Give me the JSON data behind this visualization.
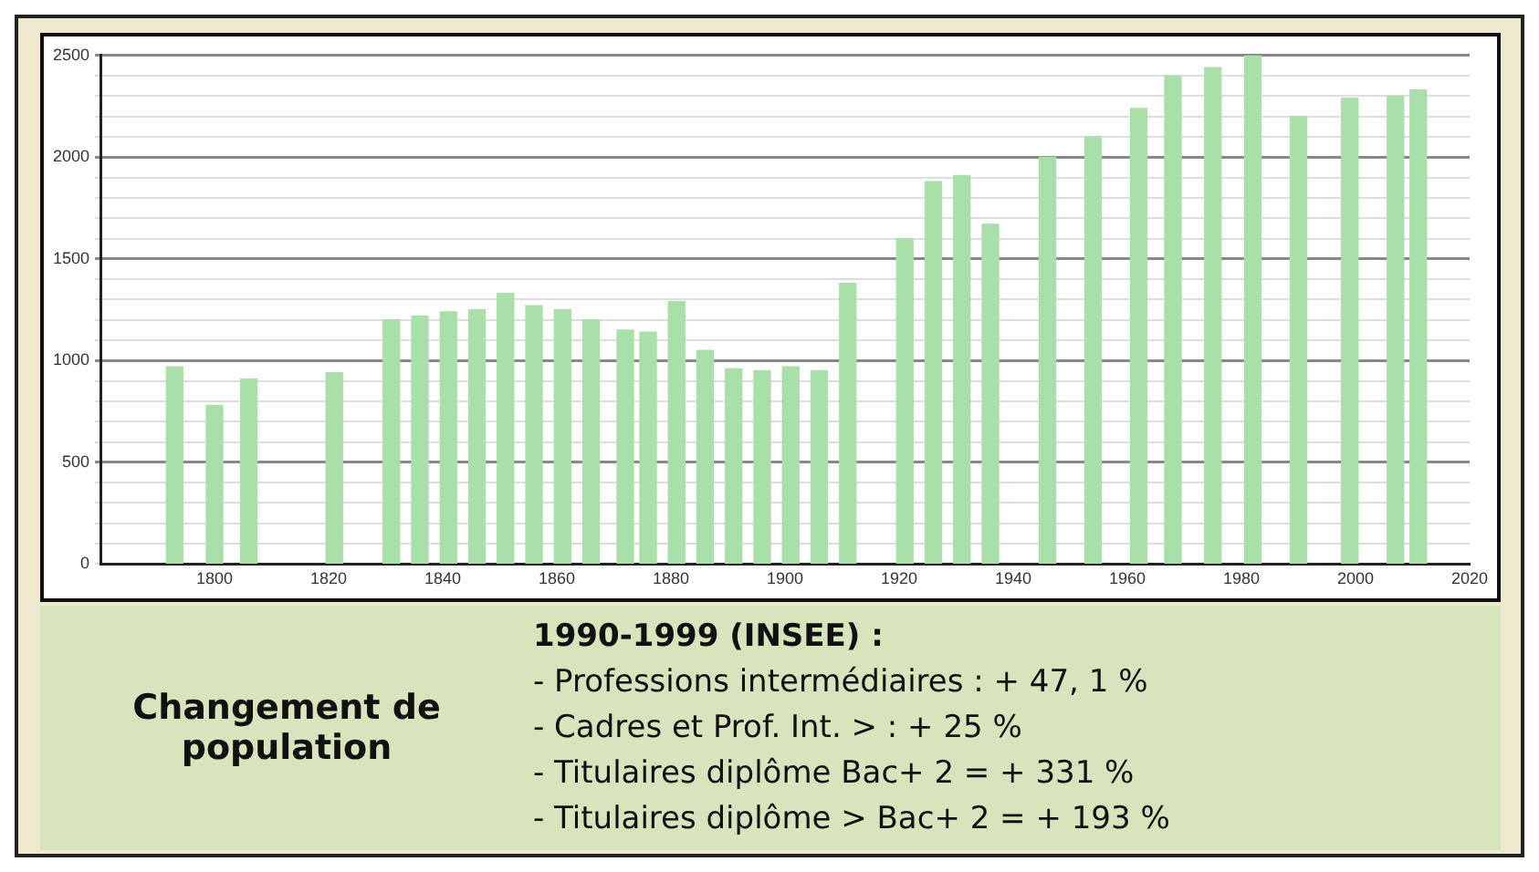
{
  "chart_data": {
    "type": "bar",
    "x": [
      1793,
      1800,
      1806,
      1821,
      1831,
      1836,
      1841,
      1846,
      1851,
      1856,
      1861,
      1866,
      1872,
      1876,
      1881,
      1886,
      1891,
      1896,
      1901,
      1906,
      1911,
      1921,
      1926,
      1931,
      1936,
      1946,
      1954,
      1962,
      1968,
      1975,
      1982,
      1990,
      1999,
      2007,
      2011
    ],
    "values": [
      970,
      780,
      910,
      940,
      1200,
      1220,
      1240,
      1250,
      1330,
      1270,
      1250,
      1200,
      1150,
      1140,
      1290,
      1050,
      960,
      950,
      970,
      950,
      1380,
      1600,
      1880,
      1910,
      1670,
      2000,
      2100,
      2240,
      2400,
      2440,
      2500,
      2200,
      2290,
      2300,
      2330
    ],
    "color": "#a9dfa9",
    "xlim": [
      1780,
      2020
    ],
    "xticks": [
      1800,
      1820,
      1840,
      1860,
      1880,
      1900,
      1920,
      1940,
      1960,
      1980,
      2000,
      2020
    ],
    "ylim": [
      0,
      2500
    ],
    "yticks": [
      0,
      {
        "value": 100,
        "label": null
      },
      {
        "value": 200,
        "label": null
      },
      {
        "value": 300,
        "label": null
      },
      {
        "value": 400,
        "label": null
      },
      500,
      {
        "value": 600,
        "label": null
      },
      {
        "value": 700,
        "label": null
      },
      {
        "value": 800,
        "label": null
      },
      {
        "value": 900,
        "label": null
      },
      1000,
      {
        "value": 1100,
        "label": null
      },
      {
        "value": 1200,
        "label": null
      },
      {
        "value": 1300,
        "label": null
      },
      {
        "value": 1400,
        "label": null
      },
      1500,
      {
        "value": 1600,
        "label": null
      },
      {
        "value": 1700,
        "label": null
      },
      {
        "value": 1800,
        "label": null
      },
      {
        "value": 1900,
        "label": null
      },
      2000,
      {
        "value": 2100,
        "label": null
      },
      {
        "value": 2200,
        "label": null
      },
      {
        "value": 2300,
        "label": null
      },
      {
        "value": 2400,
        "label": null
      },
      2500
    ],
    "grid": "y",
    "annotations": [
      "Changement de population",
      "1990-1999 (INSEE) :",
      "- Professions intermédiaires : + 47, 1 %",
      "- Cadres et Prof. Int. > : + 25 %",
      "- Titulaires diplôme Bac+ 2 = + 331 %",
      "- Titulaires diplôme > Bac+ 2 = + 193 %"
    ]
  }
}
